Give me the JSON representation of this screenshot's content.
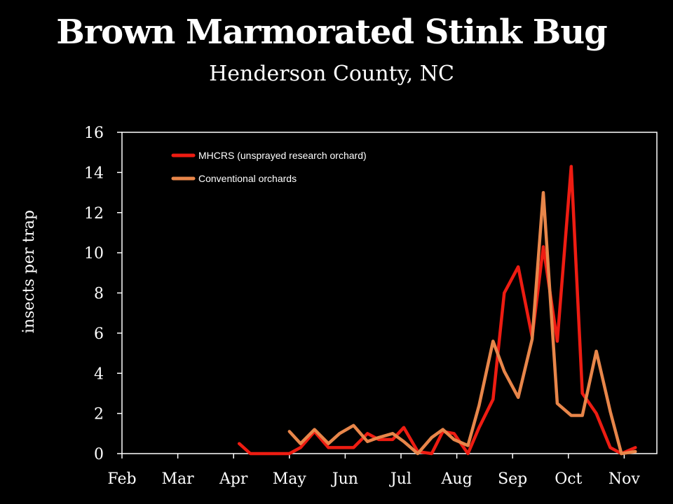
{
  "slide": {
    "title": "Brown Marmorated Stink Bug",
    "subtitle": "Henderson County, NC"
  },
  "chart_data": {
    "type": "line",
    "title": "Brown Marmorated Stink Bug",
    "subtitle": "Henderson County, NC",
    "xlabel": "",
    "ylabel": "insects per trap",
    "x_categories": [
      "Feb",
      "Mar",
      "Apr",
      "May",
      "Jun",
      "Jul",
      "Aug",
      "Sep",
      "Oct",
      "Nov"
    ],
    "ylim": [
      0,
      16
    ],
    "yticks": [
      0,
      2,
      4,
      6,
      8,
      10,
      12,
      14,
      16
    ],
    "grid": false,
    "legend_position": "top-left",
    "background": "#000000",
    "axis_color": "#ffffff",
    "series": [
      {
        "name": "MHCRS (unsprayed research orchard)",
        "color": "#ee1c12",
        "points": [
          {
            "x": 2.1,
            "y": 0.5
          },
          {
            "x": 2.3,
            "y": 0.0
          },
          {
            "x": 2.55,
            "y": 0.0
          },
          {
            "x": 2.8,
            "y": 0.0
          },
          {
            "x": 3.0,
            "y": 0.0
          },
          {
            "x": 3.2,
            "y": 0.3
          },
          {
            "x": 3.45,
            "y": 1.1
          },
          {
            "x": 3.7,
            "y": 0.3
          },
          {
            "x": 4.15,
            "y": 0.3
          },
          {
            "x": 4.4,
            "y": 1.0
          },
          {
            "x": 4.6,
            "y": 0.7
          },
          {
            "x": 4.85,
            "y": 0.7
          },
          {
            "x": 5.05,
            "y": 1.3
          },
          {
            "x": 5.3,
            "y": 0.1
          },
          {
            "x": 5.55,
            "y": 0.0
          },
          {
            "x": 5.75,
            "y": 1.1
          },
          {
            "x": 5.95,
            "y": 1.0
          },
          {
            "x": 6.2,
            "y": 0.0
          },
          {
            "x": 6.4,
            "y": 1.3
          },
          {
            "x": 6.65,
            "y": 2.7
          },
          {
            "x": 6.85,
            "y": 8.0
          },
          {
            "x": 7.1,
            "y": 9.3
          },
          {
            "x": 7.35,
            "y": 5.8
          },
          {
            "x": 7.55,
            "y": 10.3
          },
          {
            "x": 7.8,
            "y": 5.6
          },
          {
            "x": 8.05,
            "y": 14.3
          },
          {
            "x": 8.25,
            "y": 3.0
          },
          {
            "x": 8.5,
            "y": 2.0
          },
          {
            "x": 8.75,
            "y": 0.3
          },
          {
            "x": 8.95,
            "y": 0.0
          },
          {
            "x": 9.2,
            "y": 0.3
          }
        ]
      },
      {
        "name": "Conventional orchards",
        "color": "#e8864a",
        "points": [
          {
            "x": 3.0,
            "y": 1.1
          },
          {
            "x": 3.2,
            "y": 0.5
          },
          {
            "x": 3.45,
            "y": 1.2
          },
          {
            "x": 3.7,
            "y": 0.5
          },
          {
            "x": 3.9,
            "y": 1.0
          },
          {
            "x": 4.15,
            "y": 1.4
          },
          {
            "x": 4.4,
            "y": 0.6
          },
          {
            "x": 4.6,
            "y": 0.8
          },
          {
            "x": 4.85,
            "y": 1.0
          },
          {
            "x": 5.05,
            "y": 0.6
          },
          {
            "x": 5.3,
            "y": 0.0
          },
          {
            "x": 5.55,
            "y": 0.8
          },
          {
            "x": 5.75,
            "y": 1.2
          },
          {
            "x": 5.95,
            "y": 0.7
          },
          {
            "x": 6.2,
            "y": 0.4
          },
          {
            "x": 6.4,
            "y": 2.4
          },
          {
            "x": 6.65,
            "y": 5.6
          },
          {
            "x": 6.85,
            "y": 4.1
          },
          {
            "x": 7.1,
            "y": 2.8
          },
          {
            "x": 7.35,
            "y": 5.7
          },
          {
            "x": 7.55,
            "y": 13.0
          },
          {
            "x": 7.8,
            "y": 2.5
          },
          {
            "x": 8.05,
            "y": 1.9
          },
          {
            "x": 8.25,
            "y": 1.9
          },
          {
            "x": 8.5,
            "y": 5.1
          },
          {
            "x": 8.75,
            "y": 2.1
          },
          {
            "x": 8.95,
            "y": 0.0
          },
          {
            "x": 9.2,
            "y": 0.1
          }
        ]
      }
    ]
  }
}
